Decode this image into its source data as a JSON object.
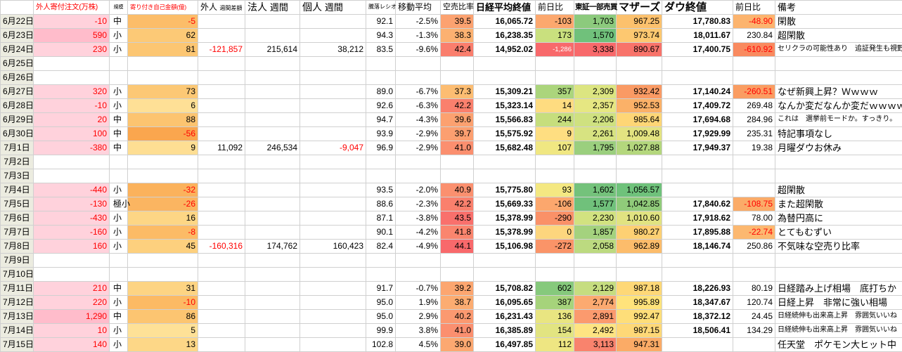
{
  "colors": {
    "grid": "#d0d0d0",
    "datefill": "#ecece0",
    "red": "#ff0000"
  },
  "headers": {
    "order": "外人寄付注文(万株)",
    "size": "規模",
    "amount": "寄り付き自己金額(億)",
    "gaijin": "外人",
    "gaijin_sub": "週間差額",
    "hojin": "法人",
    "hojin_sub": "週間",
    "kojin": "個人",
    "kojin_sub": "週間",
    "ratio": "騰落レシオ",
    "ma": "移動平均",
    "short_ratio": "空売比率",
    "nikkei": "日経平均終値",
    "nikkei_chg": "前日比",
    "tosho": "東証一部売買",
    "mothers": "マザーズ",
    "dow": "ダウ終値",
    "dow_chg": "前日比",
    "remarks": "備考"
  },
  "rows": [
    {
      "date": "6月22日",
      "order": {
        "t": "-10",
        "bg": "#ffd2dc",
        "fg": "#ff0000"
      },
      "size": "中",
      "amount": {
        "t": "-5",
        "bg": "#fcbd69",
        "fg": "#ff0000"
      },
      "ratio": "92.1",
      "ma": "-2.5%",
      "short": {
        "t": "39.5",
        "bg": "#fca270"
      },
      "nikkei": "16,065.72",
      "nikkei_chg": {
        "t": "-103",
        "bg": "#fca86e"
      },
      "tosho": {
        "t": "1,703",
        "bg": "#8cca7d"
      },
      "mothers": {
        "t": "967.25",
        "bg": "#fcc16d"
      },
      "dow": "17,780.83",
      "dow_chg": {
        "t": "-48.90",
        "bg": "#fcb46e",
        "fg": "#ff0000"
      },
      "remarks": "閑散"
    },
    {
      "date": "6月23日",
      "order": {
        "t": "590",
        "bg": "#ffbccb",
        "fg": "#ff0000"
      },
      "size": "小",
      "amount": {
        "t": "62",
        "bg": "#fcc976"
      },
      "ratio": "94.3",
      "ma": "-1.3%",
      "short": {
        "t": "38.3",
        "bg": "#fcb171"
      },
      "nikkei": "16,238.35",
      "nikkei_chg": {
        "t": "173",
        "bg": "#c9e07e"
      },
      "tosho": {
        "t": "1,570",
        "bg": "#70c17b"
      },
      "mothers": {
        "t": "973.74",
        "bg": "#fdc870"
      },
      "dow": "18,011.67",
      "dow_chg": "230.84",
      "remarks": "超閑散"
    },
    {
      "date": "6月24日",
      "order": {
        "t": "230",
        "bg": "#ffd2dc",
        "fg": "#ff0000"
      },
      "size": "小",
      "amount": {
        "t": "81",
        "bg": "#fcc672"
      },
      "gaijin": {
        "t": "-121,857",
        "fg": "#ff0000"
      },
      "hojin": "215,614",
      "kojin": "38,212",
      "ratio": "83.5",
      "ma": "-9.6%",
      "short": {
        "t": "42.4",
        "bg": "#fa7e6d"
      },
      "nikkei": "14,952.02",
      "nikkei_chg": {
        "t": "-1,286",
        "bg": "#f8696b",
        "fg": "#ffffff",
        "s": 1
      },
      "tosho": {
        "t": "3,338",
        "bg": "#f8696b"
      },
      "mothers": {
        "t": "890.67",
        "bg": "#f8736a"
      },
      "dow": "17,400.75",
      "dow_chg": {
        "t": "-610.92",
        "bg": "#f98a5f",
        "fg": "#ff0000"
      },
      "remarks": {
        "t": "セリクラの可能性あり　追証発生も視野",
        "s": 1
      }
    },
    {
      "date": "6月25日"
    },
    {
      "date": "6月26日"
    },
    {
      "date": "6月27日",
      "order": {
        "t": "320",
        "bg": "#ffd2dc",
        "fg": "#ff0000"
      },
      "size": "小",
      "amount": {
        "t": "73",
        "bg": "#fcc875"
      },
      "ratio": "89.0",
      "ma": "-6.7%",
      "short": {
        "t": "37.3",
        "bg": "#fdbd72"
      },
      "nikkei": "15,309.21",
      "nikkei_chg": {
        "t": "357",
        "bg": "#abd57c"
      },
      "tosho": {
        "t": "2,309",
        "bg": "#dce581"
      },
      "mothers": {
        "t": "932.42",
        "bg": "#fa9a64"
      },
      "dow": "17,140.24",
      "dow_chg": {
        "t": "-260.51",
        "bg": "#fa9d62",
        "fg": "#ff0000"
      },
      "remarks": "なぜ新興上昇？Ｗｗｗｗ"
    },
    {
      "date": "6月28日",
      "order": {
        "t": "-10",
        "bg": "#ffd2dc",
        "fg": "#ff0000"
      },
      "size": "小",
      "amount": {
        "t": "6",
        "bg": "#fee096"
      },
      "ratio": "92.6",
      "ma": "-6.3%",
      "short": {
        "t": "42.2",
        "bg": "#fa806d"
      },
      "nikkei": "15,323.14",
      "nikkei_chg": {
        "t": "14",
        "bg": "#fedc80"
      },
      "tosho": {
        "t": "2,357",
        "bg": "#e6e782"
      },
      "mothers": {
        "t": "952.53",
        "bg": "#fbb168"
      },
      "dow": "17,409.72",
      "dow_chg": "269.48",
      "remarks": "なんか変だなんか変だｗｗｗｗ"
    },
    {
      "date": "6月29日",
      "order": {
        "t": "20",
        "bg": "#ffd2dc",
        "fg": "#ff0000"
      },
      "size": "中",
      "amount": {
        "t": "88",
        "bg": "#fcc470"
      },
      "ratio": "94.7",
      "ma": "-4.3%",
      "short": {
        "t": "39.6",
        "bg": "#fca170"
      },
      "nikkei": "15,566.83",
      "nikkei_chg": {
        "t": "244",
        "bg": "#c6de7d"
      },
      "tosho": {
        "t": "2,206",
        "bg": "#cfe180"
      },
      "mothers": {
        "t": "985.64",
        "bg": "#fed676"
      },
      "dow": "17,694.68",
      "dow_chg": "284.96",
      "remarks": {
        "t": "これは　選挙前モードか。すっきり。",
        "s": 1
      }
    },
    {
      "date": "6月30日",
      "order": {
        "t": "100",
        "bg": "#ffd2dc",
        "fg": "#ff0000"
      },
      "size": "中",
      "amount": {
        "t": "-56",
        "bg": "#faa64e",
        "fg": "#ff0000"
      },
      "ratio": "93.9",
      "ma": "-2.9%",
      "short": {
        "t": "39.7",
        "bg": "#fc9f70"
      },
      "nikkei": "15,575.92",
      "nikkei_chg": {
        "t": "9",
        "bg": "#fede81"
      },
      "tosho": {
        "t": "2,261",
        "bg": "#d7e381"
      },
      "mothers": {
        "t": "1,009.48",
        "bg": "#e3e381"
      },
      "dow": "17,929.99",
      "dow_chg": "235.31",
      "remarks": "特記事項なし"
    },
    {
      "date": "7月1日",
      "order": {
        "t": "-380",
        "bg": "#ffd2dc",
        "fg": "#ff0000"
      },
      "size": "中",
      "amount": {
        "t": "9",
        "bg": "#fede93"
      },
      "gaijin": "11,092",
      "hojin": "246,534",
      "kojin": {
        "t": "-9,047",
        "fg": "#ff0000"
      },
      "ratio": "96.9",
      "ma": "-2.9%",
      "short": {
        "t": "41.0",
        "bg": "#fb8f6f"
      },
      "nikkei": "15,682.48",
      "nikkei_chg": {
        "t": "107",
        "bg": "#f0e782"
      },
      "tosho": {
        "t": "1,795",
        "bg": "#9bcf7e"
      },
      "mothers": {
        "t": "1,027.88",
        "bg": "#b4d77d"
      },
      "dow": "17,949.37",
      "dow_chg": "19.38",
      "remarks": "月曜ダウお休み"
    },
    {
      "date": "7月2日"
    },
    {
      "date": "7月3日"
    },
    {
      "date": "7月4日",
      "order": {
        "t": "-440",
        "bg": "#ffd2dc",
        "fg": "#ff0000"
      },
      "size": "小",
      "amount": {
        "t": "-32",
        "bg": "#fbb25c",
        "fg": "#ff0000"
      },
      "ratio": "93.5",
      "ma": "-2.0%",
      "short": {
        "t": "40.9",
        "bg": "#fb906f"
      },
      "nikkei": "15,775.80",
      "nikkei_chg": {
        "t": "93",
        "bg": "#f4e882"
      },
      "tosho": {
        "t": "1,602",
        "bg": "#74c27b"
      },
      "mothers": {
        "t": "1,056.57",
        "bg": "#6fc27b"
      },
      "remarks": "超閑散"
    },
    {
      "date": "7月5日",
      "order": {
        "t": "-130",
        "bg": "#ffd2dc",
        "fg": "#ff0000"
      },
      "size": "極小",
      "amount": {
        "t": "-26",
        "bg": "#fbb561",
        "fg": "#ff0000"
      },
      "ratio": "88.6",
      "ma": "-2.3%",
      "short": {
        "t": "42.2",
        "bg": "#fa806d"
      },
      "nikkei": "15,669.33",
      "nikkei_chg": {
        "t": "-106",
        "bg": "#fca76d"
      },
      "tosho": {
        "t": "1,577",
        "bg": "#70c17b"
      },
      "mothers": {
        "t": "1,042.85",
        "bg": "#90cb7a"
      },
      "dow": "17,840.62",
      "dow_chg": {
        "t": "-108.75",
        "bg": "#fbab68",
        "fg": "#ff0000"
      },
      "remarks": "また超閑散"
    },
    {
      "date": "7月6日",
      "order": {
        "t": "-430",
        "bg": "#ffd2dc",
        "fg": "#ff0000"
      },
      "size": "小",
      "amount": {
        "t": "16",
        "bg": "#fdd685"
      },
      "ratio": "87.1",
      "ma": "-3.8%",
      "short": {
        "t": "43.5",
        "bg": "#f9706c"
      },
      "nikkei": "15,378.99",
      "nikkei_chg": {
        "t": "-290",
        "bg": "#fa9168"
      },
      "tosho": {
        "t": "2,230",
        "bg": "#d2e280"
      },
      "mothers": {
        "t": "1,010.60",
        "bg": "#e1e381"
      },
      "dow": "17,918.62",
      "dow_chg": "78.00",
      "remarks": "為替円高に"
    },
    {
      "date": "7月7日",
      "order": {
        "t": "-160",
        "bg": "#ffd2dc",
        "fg": "#ff0000"
      },
      "size": "小",
      "amount": {
        "t": "-8",
        "bg": "#fcbb66",
        "fg": "#ff0000"
      },
      "ratio": "90.1",
      "ma": "-4.2%",
      "short": {
        "t": "41.8",
        "bg": "#fa856e"
      },
      "nikkei": "15,378.99",
      "nikkei_chg": {
        "t": "0",
        "bg": "#fdd67e"
      },
      "tosho": {
        "t": "1,857",
        "bg": "#a4d27e"
      },
      "mothers": {
        "t": "980.27",
        "bg": "#fdd073"
      },
      "dow": "17,895.88",
      "dow_chg": {
        "t": "-22.74",
        "bg": "#fcb870",
        "fg": "#ff0000"
      },
      "remarks": "とてもむずい"
    },
    {
      "date": "7月8日",
      "order": {
        "t": "160",
        "bg": "#ffd2dc",
        "fg": "#ff0000"
      },
      "size": "小",
      "amount": {
        "t": "45",
        "bg": "#fdd07e"
      },
      "gaijin": {
        "t": "-160,316",
        "fg": "#ff0000"
      },
      "hojin": "174,762",
      "kojin": "160,423",
      "ratio": "82.4",
      "ma": "-4.9%",
      "short": {
        "t": "44.1",
        "bg": "#f8696b"
      },
      "nikkei": "15,106.98",
      "nikkei_chg": {
        "t": "-272",
        "bg": "#fa9468"
      },
      "tosho": {
        "t": "2,058",
        "bg": "#bcda80"
      },
      "mothers": {
        "t": "962.89",
        "bg": "#fcbc6b"
      },
      "dow": "18,146.74",
      "dow_chg": "250.86",
      "remarks": "不気味な空売り比率"
    },
    {
      "date": "7月9日"
    },
    {
      "date": "7月10日"
    },
    {
      "date": "7月11日",
      "order": {
        "t": "210",
        "bg": "#ffd2dc",
        "fg": "#ff0000"
      },
      "size": "中",
      "amount": {
        "t": "31",
        "bg": "#fdd483"
      },
      "ratio": "91.7",
      "ma": "-0.7%",
      "short": {
        "t": "39.2",
        "bg": "#fca670"
      },
      "nikkei": "15,708.82",
      "nikkei_chg": {
        "t": "602",
        "bg": "#86c97c"
      },
      "tosho": {
        "t": "2,129",
        "bg": "#c6dd80"
      },
      "mothers": {
        "t": "987.18",
        "bg": "#fed877"
      },
      "dow": "18,226.93",
      "dow_chg": "80.19",
      "remarks": "日経踏み上げ相場　底打ちか"
    },
    {
      "date": "7月12日",
      "order": {
        "t": "220",
        "bg": "#ffd2dc",
        "fg": "#ff0000"
      },
      "size": "小",
      "amount": {
        "t": "-10",
        "bg": "#fcba64",
        "fg": "#ff0000"
      },
      "ratio": "95.0",
      "ma": "1.9%",
      "short": {
        "t": "38.7",
        "bg": "#fcac71"
      },
      "nikkei": "16,095.65",
      "nikkei_chg": {
        "t": "387",
        "bg": "#a6d37b"
      },
      "tosho": {
        "t": "2,774",
        "bg": "#fcaa70"
      },
      "mothers": {
        "t": "995.89",
        "bg": "#ffe37b"
      },
      "dow": "18,347.67",
      "dow_chg": "120.74",
      "remarks": "日経上昇　非常に強い相場"
    },
    {
      "date": "7月13日",
      "order": {
        "t": "1,290",
        "bg": "#ffbccb",
        "fg": "#ff0000"
      },
      "size": "中",
      "amount": {
        "t": "86",
        "bg": "#fcc571"
      },
      "ratio": "95.0",
      "ma": "2.9%",
      "short": {
        "t": "40.2",
        "bg": "#fb9970"
      },
      "nikkei": "16,231.43",
      "nikkei_chg": {
        "t": "136",
        "bg": "#e9e581"
      },
      "tosho": {
        "t": "2,891",
        "bg": "#fb9a6e"
      },
      "mothers": {
        "t": "992.47",
        "bg": "#fede79"
      },
      "dow": "18,372.12",
      "dow_chg": "24.45",
      "remarks": {
        "t": "日経続伸も出来高上昇　雰囲気いいね",
        "s": 1
      }
    },
    {
      "date": "7月14日",
      "order": {
        "t": "10",
        "bg": "#ffd2dc",
        "fg": "#ff0000"
      },
      "size": "小",
      "amount": {
        "t": "5",
        "bg": "#fee197"
      },
      "ratio": "99.9",
      "ma": "3.8%",
      "short": {
        "t": "41.0",
        "bg": "#fb8f6f"
      },
      "nikkei": "16,385.89",
      "nikkei_chg": {
        "t": "154",
        "bg": "#e2e481"
      },
      "tosho": {
        "t": "2,492",
        "bg": "#fee482"
      },
      "mothers": {
        "t": "987.15",
        "bg": "#fed877"
      },
      "dow": "18,506.41",
      "dow_chg": "134.29",
      "remarks": {
        "t": "日経続伸も出来高上昇　雰囲気いいね",
        "s": 1
      }
    },
    {
      "date": "7月15日",
      "order": {
        "t": "140",
        "bg": "#ffd2dc",
        "fg": "#ff0000"
      },
      "size": "小",
      "amount": {
        "t": "13",
        "bg": "#fdd787"
      },
      "ratio": "102.8",
      "ma": "4.5%",
      "short": {
        "t": "39.0",
        "bg": "#fca871"
      },
      "nikkei": "16,497.85",
      "nikkei_chg": {
        "t": "112",
        "bg": "#eee682"
      },
      "tosho": {
        "t": "3,113",
        "bg": "#f9836d"
      },
      "mothers": {
        "t": "947.31",
        "bg": "#fbab66"
      },
      "remarks": "任天堂　ポケモン大ヒット中"
    }
  ]
}
